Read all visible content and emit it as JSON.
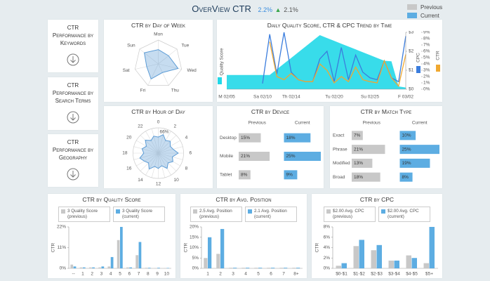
{
  "header": {
    "title": "OverView CTR",
    "current": "2.2%",
    "previous": "2.1%"
  },
  "legend": {
    "previous": "Previous",
    "current": "Current"
  },
  "nav": [
    "CTR Performance by Keywords",
    "CTR Performance by Search Terms",
    "CTR Performance by Geography"
  ],
  "chart_data": [
    {
      "type": "radar",
      "title": "CTR by Day of Week",
      "categories": [
        "Mon",
        "Tue",
        "Wed",
        "Thu",
        "Fri",
        "Sat",
        "Sun"
      ],
      "values": [
        0.6,
        0.55,
        0.85,
        0.4,
        0.7,
        0.5,
        0.75
      ],
      "ylim": [
        0,
        1
      ],
      "color": "#5b9bd5"
    },
    {
      "type": "combo",
      "title": "Daily Quality Score, CTR & CPC Trend by Time",
      "categories": [
        "M 02/05",
        null,
        null,
        null,
        null,
        "Sa 02/10",
        null,
        null,
        null,
        "Th 02/14",
        null,
        null,
        null,
        null,
        null,
        "Tu 02/20",
        null,
        null,
        null,
        null,
        "Su 02/25",
        null,
        null,
        null,
        null,
        "F 03/02"
      ],
      "ylim": [
        0,
        10
      ],
      "y2lim": [
        0,
        3
      ],
      "y2ticks": [
        {
          "value": 0,
          "label": "$0"
        },
        {
          "value": 1,
          "label": "$1"
        },
        {
          "value": 2,
          "label": "$2"
        },
        {
          "value": 3,
          "label": "$3"
        }
      ],
      "y3lim": [
        0,
        9
      ],
      "y3ticks": [
        {
          "value": 0,
          "label": "0%"
        },
        {
          "value": 1,
          "label": "1%"
        },
        {
          "value": 2,
          "label": "2%"
        },
        {
          "value": 3,
          "label": "3%"
        },
        {
          "value": 4,
          "label": "4%"
        },
        {
          "value": 5,
          "label": "5%"
        },
        {
          "value": 6,
          "label": "6%"
        },
        {
          "value": 7,
          "label": "7%"
        },
        {
          "value": 8,
          "label": "8%"
        },
        {
          "value": 9,
          "label": "9%"
        }
      ],
      "series": [
        {
          "name": "Quality Score",
          "type": "area",
          "color": "#22d8e8",
          "values": [
            2.5,
            2.5,
            2.5,
            2.5,
            2.5,
            2.5,
            2.5,
            3.5,
            4.5,
            5.5,
            6.5,
            7.5,
            8.5,
            9.5,
            9,
            8.5,
            8,
            7.5,
            7,
            6.5,
            6,
            5.5,
            5,
            4.9,
            0.5,
            0.3
          ]
        },
        {
          "name": "CPC",
          "type": "line",
          "axis": "y2",
          "color": "#3b7ddd",
          "values": [
            null,
            null,
            null,
            null,
            null,
            0.3,
            2.9,
            0.8,
            3.0,
            0.9,
            0.5,
            0.4,
            0.4,
            1.6,
            2.0,
            0.4,
            2.2,
            0.5,
            1.8,
            0.9,
            0.6,
            0.5,
            1.5,
            0.6,
            0.4,
            2.8
          ]
        },
        {
          "name": "CTR",
          "type": "line",
          "axis": "y3",
          "color": "#f0a830",
          "values": [
            null,
            null,
            null,
            null,
            null,
            null,
            7.5,
            2,
            1.5,
            2.5,
            1.5,
            1.2,
            1.2,
            4,
            3,
            1,
            2,
            1.2,
            3.5,
            1.5,
            1.2,
            1,
            4.5,
            1.8,
            0.5,
            5.5
          ]
        }
      ]
    },
    {
      "type": "polar",
      "title": "CTR by Hour of Day",
      "categories": [
        "0",
        null,
        "2",
        null,
        "4",
        null,
        "6",
        null,
        "8",
        null,
        "10",
        null,
        "12",
        null,
        "14",
        null,
        "16",
        null,
        "18",
        null,
        "20",
        null,
        "22",
        null
      ],
      "values": [
        42,
        50,
        38,
        44,
        36,
        40,
        52,
        38,
        44,
        36,
        46,
        34,
        40,
        36,
        48,
        36,
        42,
        50,
        38,
        44,
        36,
        48,
        38,
        46
      ],
      "ylim": [
        0,
        66
      ],
      "yticks": [
        {
          "value": 66,
          "label": "66%"
        }
      ],
      "color": "#5b9bd5"
    },
    {
      "type": "hbar",
      "title": "CTR by Device",
      "categories": [
        "Desktop",
        "Mobile",
        "Tablet"
      ],
      "xlim": [
        0,
        25
      ],
      "series": [
        {
          "name": "Previous",
          "color": "#c8c8c8",
          "values": [
            15,
            21,
            8
          ],
          "value_labels": [
            "15%",
            "21%",
            "8%"
          ]
        },
        {
          "name": "Current",
          "color": "#5dade2",
          "values": [
            18,
            25,
            9
          ],
          "value_labels": [
            "18%",
            "25%",
            "9%"
          ]
        }
      ]
    },
    {
      "type": "hbar",
      "title": "CTR by Match Type",
      "categories": [
        "Exact",
        "Phrase",
        "Modified",
        "Broad"
      ],
      "xlim": [
        0,
        25
      ],
      "series": [
        {
          "name": "Previous",
          "color": "#c8c8c8",
          "values": [
            7,
            21,
            13,
            18
          ],
          "value_labels": [
            "7%",
            "21%",
            "13%",
            "18%"
          ]
        },
        {
          "name": "Current",
          "color": "#5dade2",
          "values": [
            10,
            25,
            19,
            8
          ],
          "value_labels": [
            "10%",
            "25%",
            "19%",
            "8%"
          ]
        }
      ]
    },
    {
      "type": "bar",
      "title": "CTR by Quality Score",
      "ylabel": "CTR",
      "categories": [
        "--",
        "1",
        "2",
        "3",
        "4",
        "5",
        "6",
        "7",
        "8",
        "9",
        "10"
      ],
      "ylim": [
        0,
        22
      ],
      "yticks": [
        {
          "value": 0,
          "label": "0%"
        },
        {
          "value": 11,
          "label": "11%"
        },
        {
          "value": 22,
          "label": "22%"
        }
      ],
      "series": [
        {
          "name": "3 Quality Score (previous)",
          "color": "#c8c8c8",
          "values": [
            2,
            0.5,
            0.5,
            0.5,
            1,
            15,
            0.5,
            7,
            0.3,
            0.2,
            0.2
          ]
        },
        {
          "name": "3 Quality Score (current)",
          "color": "#5dade2",
          "values": [
            1,
            0.5,
            0.5,
            1,
            6,
            22,
            0.5,
            14,
            0.3,
            0.3,
            0.2
          ]
        }
      ]
    },
    {
      "type": "bar",
      "title": "CTR by Avg. Position",
      "ylabel": "CTR",
      "categories": [
        "1",
        "2",
        "3",
        "4",
        "5",
        "6",
        "7",
        "8+"
      ],
      "ylim": [
        0,
        20
      ],
      "yticks": [
        {
          "value": 0,
          "label": "0%"
        },
        {
          "value": 5,
          "label": "5%"
        },
        {
          "value": 10,
          "label": "10%"
        },
        {
          "value": 15,
          "label": "15%"
        },
        {
          "value": 20,
          "label": "20%"
        }
      ],
      "series": [
        {
          "name": "2.5 Avg. Position (previous)",
          "color": "#c8c8c8",
          "values": [
            5,
            7,
            0.3,
            0.3,
            0.3,
            0.3,
            0.3,
            0.3
          ]
        },
        {
          "name": "2.1 Avg. Position (current)",
          "color": "#5dade2",
          "values": [
            15,
            19,
            0.3,
            0.3,
            0.3,
            0.3,
            0.3,
            0.3
          ]
        }
      ]
    },
    {
      "type": "bar",
      "title": "CTR by CPC",
      "ylabel": "CTR",
      "categories": [
        "$0-$1",
        "$1-$2",
        "$2-$3",
        "$3-$4",
        "$4-$5",
        "$5+"
      ],
      "ylim": [
        0,
        8
      ],
      "yticks": [
        {
          "value": 0,
          "label": "0%"
        },
        {
          "value": 2,
          "label": "2%"
        },
        {
          "value": 4,
          "label": "4%"
        },
        {
          "value": 6,
          "label": "6%"
        },
        {
          "value": 8,
          "label": "8%"
        }
      ],
      "series": [
        {
          "name": "$2.00 Avg. CPC (previous)",
          "color": "#c8c8c8",
          "values": [
            0.5,
            4.3,
            3.5,
            1.5,
            2.5,
            1
          ]
        },
        {
          "name": "$2.00 Avg. CPC (current)",
          "color": "#5dade2",
          "values": [
            1,
            5.5,
            4.5,
            1.5,
            2,
            8
          ]
        }
      ]
    }
  ]
}
